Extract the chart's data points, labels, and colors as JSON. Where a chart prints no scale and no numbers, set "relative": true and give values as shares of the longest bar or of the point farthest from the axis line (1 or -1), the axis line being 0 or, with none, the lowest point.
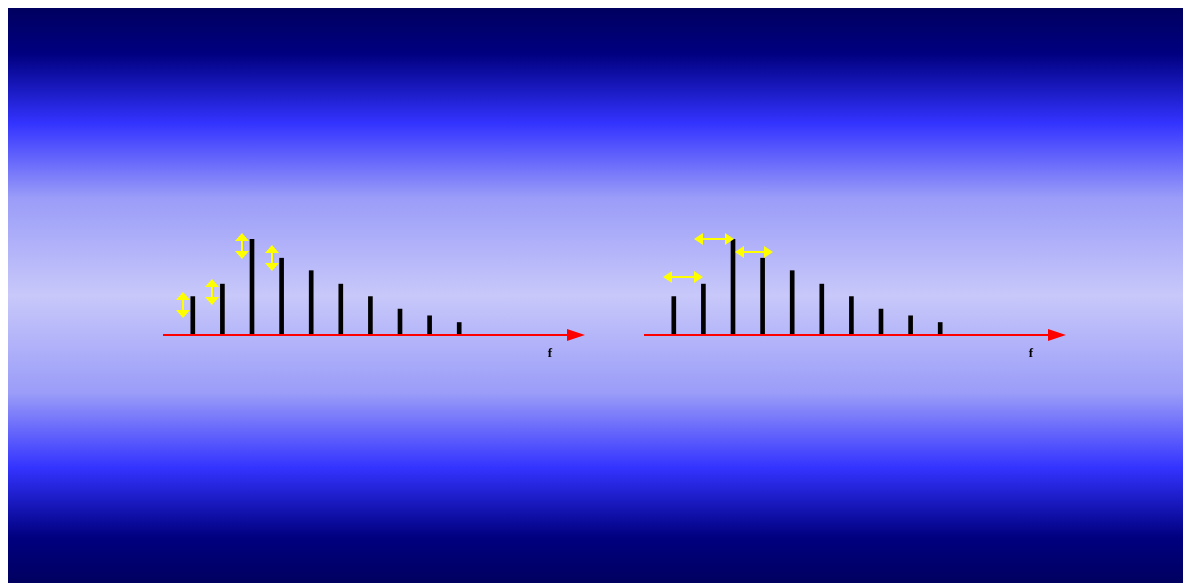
{
  "chart_data": [
    {
      "type": "bar",
      "relative": true,
      "xlabel": "f",
      "color": "#000000",
      "categories": [
        null,
        null,
        null,
        null,
        null,
        null,
        null,
        null,
        null,
        null
      ],
      "values": [
        0.4,
        0.53,
        1,
        0.8,
        0.67,
        0.53,
        0.4,
        0.27,
        0.2,
        0.13
      ]
    },
    {
      "type": "bar",
      "relative": true,
      "xlabel": "f",
      "color": "#000000",
      "categories": [
        null,
        null,
        null,
        null,
        null,
        null,
        null,
        null,
        null,
        null
      ],
      "values": [
        0.4,
        0.53,
        1,
        0.8,
        0.67,
        0.53,
        0.4,
        0.27,
        0.2,
        0.13
      ]
    }
  ]
}
